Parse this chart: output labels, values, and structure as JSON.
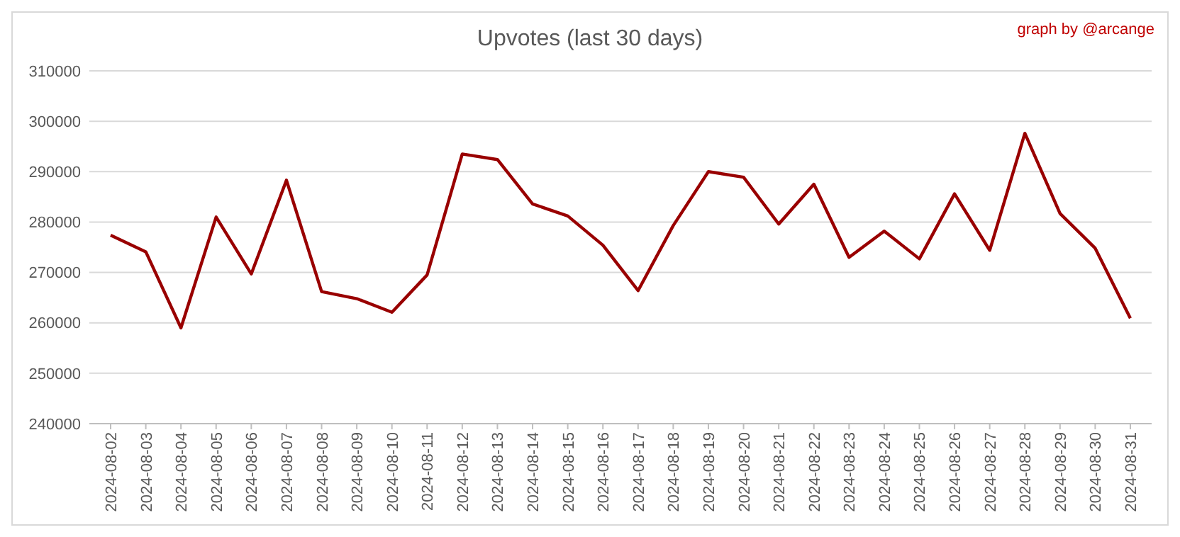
{
  "chart_data": {
    "type": "line",
    "title": "Upvotes (last 30 days)",
    "annotations": [
      "graph by @arcange"
    ],
    "categories": [
      "2024-08-02",
      "2024-08-03",
      "2024-08-04",
      "2024-08-05",
      "2024-08-06",
      "2024-08-07",
      "2024-08-08",
      "2024-08-09",
      "2024-08-10",
      "2024-08-11",
      "2024-08-12",
      "2024-08-13",
      "2024-08-14",
      "2024-08-15",
      "2024-08-16",
      "2024-08-17",
      "2024-08-18",
      "2024-08-19",
      "2024-08-20",
      "2024-08-21",
      "2024-08-22",
      "2024-08-23",
      "2024-08-24",
      "2024-08-25",
      "2024-08-26",
      "2024-08-27",
      "2024-08-28",
      "2024-08-29",
      "2024-08-30",
      "2024-08-31"
    ],
    "series": [
      {
        "color": "#990000",
        "values": [
          277400,
          274100,
          259000,
          281000,
          269700,
          288300,
          266200,
          264800,
          262100,
          269500,
          293500,
          292400,
          283600,
          281200,
          275400,
          266400,
          279300,
          290000,
          288900,
          279600,
          287500,
          273000,
          278200,
          272700,
          285600,
          274400,
          297600,
          281700,
          274800,
          260900
        ]
      }
    ],
    "ylim": [
      240000,
      310000
    ],
    "yticks": [
      240000,
      250000,
      260000,
      270000,
      280000,
      290000,
      300000,
      310000
    ],
    "grid": "y",
    "marker": "none",
    "line_style": "solid"
  }
}
